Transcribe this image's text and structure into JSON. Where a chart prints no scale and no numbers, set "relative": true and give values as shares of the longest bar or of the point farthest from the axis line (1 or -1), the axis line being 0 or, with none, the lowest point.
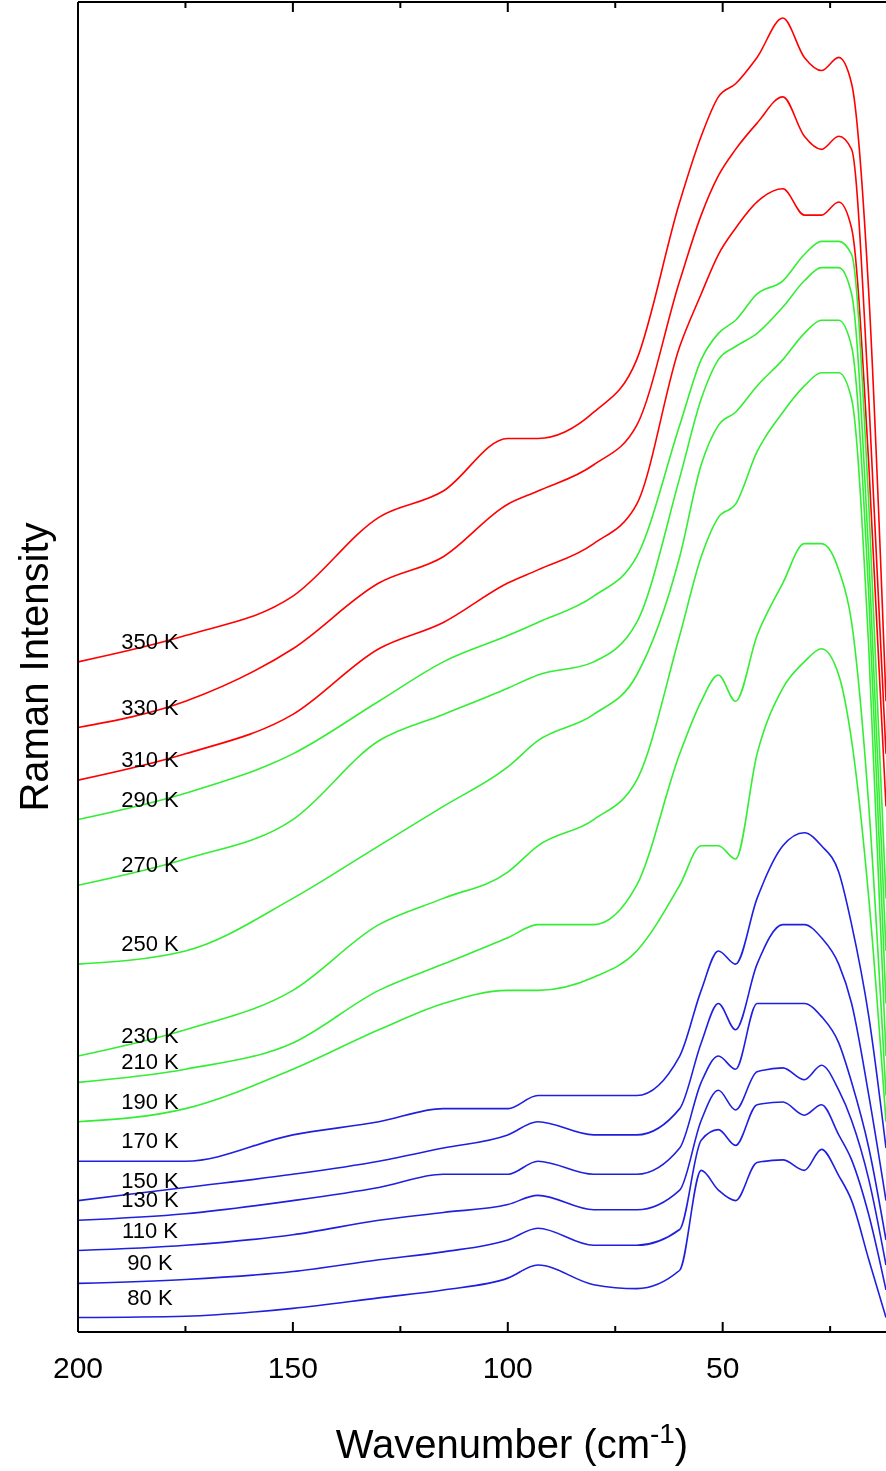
{
  "chart_data": {
    "type": "line",
    "relative": true,
    "xlabel": "Wavenumber (cm$^{-1}$)",
    "ylabel": "Raman Intensity",
    "xlim": [
      200,
      12
    ],
    "xticks": [
      200,
      {
        "value": 175,
        "label": null
      },
      150,
      {
        "value": 125,
        "label": null
      },
      100,
      {
        "value": 75,
        "label": null
      },
      50,
      {
        "value": 25,
        "label": null
      }
    ],
    "x": [
      200,
      175,
      150,
      130,
      115,
      100,
      93,
      80,
      70,
      60,
      55,
      51,
      47,
      42,
      36,
      31,
      27,
      23,
      20,
      16,
      12
    ],
    "series": [
      {
        "name": "350 K",
        "color": "#ff0000",
        "values": [
          0.51,
          0.53,
          0.56,
          0.62,
          0.64,
          0.68,
          0.68,
          0.7,
          0.74,
          0.86,
          0.91,
          0.94,
          0.95,
          0.97,
          1,
          0.97,
          0.96,
          0.97,
          0.95,
          0.79,
          0.48
        ]
      },
      {
        "name": "330 K",
        "color": "#ff0000",
        "values": [
          0.46,
          0.48,
          0.52,
          0.57,
          0.59,
          0.63,
          0.64,
          0.66,
          0.69,
          0.8,
          0.85,
          0.88,
          0.9,
          0.92,
          0.94,
          0.91,
          0.9,
          0.91,
          0.9,
          0.71,
          0.44
        ]
      },
      {
        "name": "310 K",
        "color": "#ff0000",
        "values": [
          0.42,
          0.44,
          0.47,
          0.52,
          0.54,
          0.57,
          0.58,
          0.6,
          0.63,
          0.75,
          0.79,
          0.82,
          0.84,
          0.86,
          0.87,
          0.85,
          0.85,
          0.86,
          0.84,
          0.66,
          0.4
        ]
      },
      {
        "name": "290 K",
        "color": "#33ee33",
        "values": [
          0.39,
          0.41,
          0.44,
          0.48,
          0.51,
          0.53,
          0.54,
          0.56,
          0.59,
          0.69,
          0.74,
          0.76,
          0.77,
          0.79,
          0.8,
          0.82,
          0.83,
          0.83,
          0.82,
          0.63,
          0.33
        ]
      },
      {
        "name": "270 K",
        "color": "#33ee33",
        "values": [
          0.34,
          0.36,
          0.39,
          0.45,
          0.47,
          0.49,
          0.5,
          0.51,
          0.54,
          0.65,
          0.71,
          0.74,
          0.75,
          0.76,
          0.78,
          0.8,
          0.81,
          0.81,
          0.79,
          0.59,
          0.29
        ]
      },
      {
        "name": "250 K",
        "color": "#33ee33",
        "values": [
          0.28,
          0.29,
          0.33,
          0.37,
          0.4,
          0.43,
          0.45,
          0.47,
          0.5,
          0.59,
          0.66,
          0.69,
          0.7,
          0.72,
          0.74,
          0.76,
          0.77,
          0.77,
          0.75,
          0.56,
          0.25
        ]
      },
      {
        "name": "230 K",
        "color": "#33ee33",
        "values": [
          0.21,
          0.23,
          0.26,
          0.31,
          0.33,
          0.35,
          0.37,
          0.39,
          0.42,
          0.53,
          0.59,
          0.62,
          0.63,
          0.67,
          0.7,
          0.72,
          0.73,
          0.73,
          0.71,
          0.52,
          0.21
        ]
      },
      {
        "name": "210 K",
        "color": "#33ee33",
        "values": [
          0.19,
          0.2,
          0.22,
          0.26,
          0.28,
          0.3,
          0.31,
          0.31,
          0.34,
          0.44,
          0.48,
          0.5,
          0.48,
          0.53,
          0.57,
          0.6,
          0.6,
          0.58,
          0.54,
          0.4,
          0.18
        ]
      },
      {
        "name": "190 K",
        "color": "#33ee33",
        "values": [
          0.16,
          0.17,
          0.2,
          0.23,
          0.25,
          0.26,
          0.26,
          0.27,
          0.29,
          0.34,
          0.37,
          0.37,
          0.36,
          0.44,
          0.49,
          0.51,
          0.52,
          0.5,
          0.45,
          0.33,
          0.16
        ]
      },
      {
        "name": "170 K",
        "color": "#1f1fe0",
        "values": [
          0.13,
          0.13,
          0.15,
          0.16,
          0.17,
          0.17,
          0.18,
          0.18,
          0.18,
          0.21,
          0.26,
          0.29,
          0.28,
          0.33,
          0.37,
          0.38,
          0.37,
          0.35,
          0.31,
          0.24,
          0.14
        ]
      },
      {
        "name": "150 K",
        "color": "#1f1fe0",
        "values": [
          0.1,
          0.11,
          0.12,
          0.13,
          0.14,
          0.15,
          0.16,
          0.15,
          0.15,
          0.17,
          0.22,
          0.25,
          0.23,
          0.28,
          0.31,
          0.31,
          0.3,
          0.28,
          0.25,
          0.18,
          0.1
        ]
      },
      {
        "name": "130 K",
        "color": "#1f1fe0",
        "values": [
          0.085,
          0.09,
          0.1,
          0.11,
          0.12,
          0.12,
          0.13,
          0.12,
          0.12,
          0.14,
          0.19,
          0.21,
          0.2,
          0.25,
          0.25,
          0.25,
          0.24,
          0.22,
          0.19,
          0.14,
          0.07
        ]
      },
      {
        "name": "110 K",
        "color": "#1f1fe0",
        "values": [
          0.062,
          0.066,
          0.074,
          0.085,
          0.091,
          0.097,
          0.104,
          0.093,
          0.093,
          0.108,
          0.161,
          0.184,
          0.169,
          0.198,
          0.201,
          0.192,
          0.203,
          0.184,
          0.161,
          0.116,
          0.051
        ]
      },
      {
        "name": "90 K",
        "color": "#1f1fe0",
        "values": [
          0.037,
          0.04,
          0.046,
          0.055,
          0.061,
          0.07,
          0.079,
          0.066,
          0.066,
          0.078,
          0.146,
          0.154,
          0.142,
          0.173,
          0.175,
          0.165,
          0.173,
          0.15,
          0.131,
          0.089,
          0.032
        ]
      },
      {
        "name": "80 K",
        "color": "#1f1fe0",
        "values": [
          0.011,
          0.012,
          0.018,
          0.026,
          0.032,
          0.041,
          0.051,
          0.036,
          0.033,
          0.047,
          0.123,
          0.108,
          0.1,
          0.129,
          0.131,
          0.123,
          0.139,
          0.119,
          0.1,
          0.055,
          0.011
        ]
      }
    ]
  }
}
